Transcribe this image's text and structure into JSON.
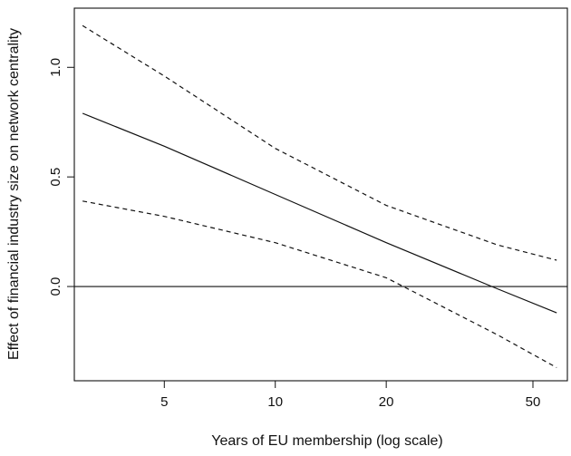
{
  "chart_data": {
    "type": "line",
    "title": "",
    "xlabel": "Years of EU membership (log scale)",
    "ylabel": "Effect of financial industry size on network centrality",
    "x_scale": "log",
    "xlim": [
      2.85,
      62
    ],
    "ylim": [
      -0.43,
      1.27
    ],
    "x_ticks": [
      5,
      10,
      20,
      50
    ],
    "x_tick_labels": [
      "5",
      "10",
      "20",
      "50"
    ],
    "y_ticks": [
      0.0,
      0.5,
      1.0
    ],
    "y_tick_labels": [
      "0.0",
      "0.5",
      "1.0"
    ],
    "grid": false,
    "legend": "none",
    "reference_line_y": 0,
    "series": [
      {
        "role": "estimate",
        "style": "solid",
        "x": [
          3,
          5,
          10,
          20,
          40,
          58
        ],
        "y": [
          0.79,
          0.64,
          0.42,
          0.2,
          -0.01,
          -0.12
        ]
      },
      {
        "role": "upper-bound",
        "style": "dashed",
        "x": [
          3,
          5,
          10,
          20,
          40,
          58
        ],
        "y": [
          1.19,
          0.96,
          0.63,
          0.37,
          0.19,
          0.12
        ]
      },
      {
        "role": "lower-bound",
        "style": "dashed",
        "x": [
          3,
          5,
          10,
          20,
          40,
          58
        ],
        "y": [
          0.39,
          0.32,
          0.2,
          0.04,
          -0.22,
          -0.37
        ]
      }
    ]
  }
}
